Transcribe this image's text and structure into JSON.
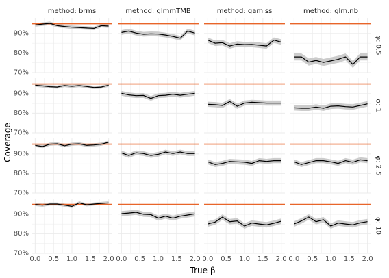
{
  "chart_data": {
    "type": "line",
    "xlabel": "True β",
    "ylabel": "Coverage",
    "x": [
      0.0,
      0.2,
      0.4,
      0.6,
      0.8,
      1.0,
      1.2,
      1.4,
      1.6,
      1.8,
      2.0
    ],
    "xticks": [
      "0.0",
      "0.5",
      "1.0",
      "1.5",
      "2.0"
    ],
    "xtick_values": [
      0.0,
      0.5,
      1.0,
      1.5,
      2.0
    ],
    "yticks": [
      "70%",
      "80%",
      "90%"
    ],
    "ytick_values": [
      0.7,
      0.8,
      0.9
    ],
    "ylim": [
      0.7,
      0.98
    ],
    "xlim": [
      -0.1,
      2.1
    ],
    "reference_line": 0.95,
    "colors": {
      "reference": "#e8652a",
      "line": "#000000",
      "band": "#cccccc",
      "grid": "#ebebeb"
    },
    "columns": [
      "method: brms",
      "method: glmmTMB",
      "method: gamlss",
      "method: glm.nb"
    ],
    "rows": [
      "φ: 0.5",
      "φ: 1",
      "φ: 2.5",
      "φ: 10"
    ],
    "panels": [
      [
        {
          "y": [
            0.944,
            0.948,
            0.952,
            0.94,
            0.936,
            0.932,
            0.93,
            0.928,
            0.926,
            0.94,
            0.938
          ],
          "band": 0.009
        },
        {
          "y": [
            0.905,
            0.912,
            0.902,
            0.896,
            0.898,
            0.897,
            0.892,
            0.885,
            0.876,
            0.912,
            0.902
          ],
          "band": 0.012
        },
        {
          "y": [
            0.866,
            0.85,
            0.853,
            0.836,
            0.846,
            0.843,
            0.844,
            0.84,
            0.836,
            0.866,
            0.856
          ],
          "band": 0.014
        },
        {
          "y": [
            0.78,
            0.78,
            0.754,
            0.762,
            0.752,
            0.76,
            0.768,
            0.78,
            0.742,
            0.78,
            0.78
          ],
          "band": 0.018
        }
      ],
      [
        {
          "y": [
            0.944,
            0.94,
            0.936,
            0.934,
            0.942,
            0.938,
            0.942,
            0.937,
            0.932,
            0.934,
            0.944
          ],
          "band": 0.008
        },
        {
          "y": [
            0.902,
            0.894,
            0.89,
            0.891,
            0.876,
            0.89,
            0.892,
            0.897,
            0.892,
            0.897,
            0.902
          ],
          "band": 0.012
        },
        {
          "y": [
            0.846,
            0.844,
            0.84,
            0.86,
            0.836,
            0.852,
            0.856,
            0.854,
            0.852,
            0.852,
            0.852
          ],
          "band": 0.013
        },
        {
          "y": [
            0.828,
            0.826,
            0.826,
            0.832,
            0.826,
            0.836,
            0.838,
            0.834,
            0.832,
            0.84,
            0.848
          ],
          "band": 0.014
        }
      ],
      [
        {
          "y": [
            0.944,
            0.938,
            0.95,
            0.952,
            0.942,
            0.95,
            0.952,
            0.944,
            0.946,
            0.95,
            0.96
          ],
          "band": 0.008
        },
        {
          "y": [
            0.905,
            0.892,
            0.906,
            0.902,
            0.892,
            0.898,
            0.91,
            0.902,
            0.91,
            0.902,
            0.902
          ],
          "band": 0.012
        },
        {
          "y": [
            0.86,
            0.846,
            0.852,
            0.862,
            0.86,
            0.858,
            0.852,
            0.866,
            0.862,
            0.866,
            0.866
          ],
          "band": 0.013
        },
        {
          "y": [
            0.86,
            0.846,
            0.856,
            0.866,
            0.866,
            0.86,
            0.852,
            0.866,
            0.858,
            0.87,
            0.866
          ],
          "band": 0.013
        }
      ],
      [
        {
          "y": [
            0.95,
            0.946,
            0.952,
            0.952,
            0.946,
            0.94,
            0.958,
            0.948,
            0.952,
            0.955,
            0.958
          ],
          "band": 0.008
        },
        {
          "y": [
            0.903,
            0.906,
            0.91,
            0.9,
            0.898,
            0.88,
            0.89,
            0.88,
            0.89,
            0.896,
            0.902
          ],
          "band": 0.013
        },
        {
          "y": [
            0.85,
            0.86,
            0.885,
            0.862,
            0.866,
            0.84,
            0.855,
            0.85,
            0.846,
            0.854,
            0.864
          ],
          "band": 0.014
        },
        {
          "y": [
            0.85,
            0.866,
            0.886,
            0.862,
            0.872,
            0.84,
            0.855,
            0.85,
            0.846,
            0.856,
            0.862
          ],
          "band": 0.014
        }
      ]
    ]
  }
}
